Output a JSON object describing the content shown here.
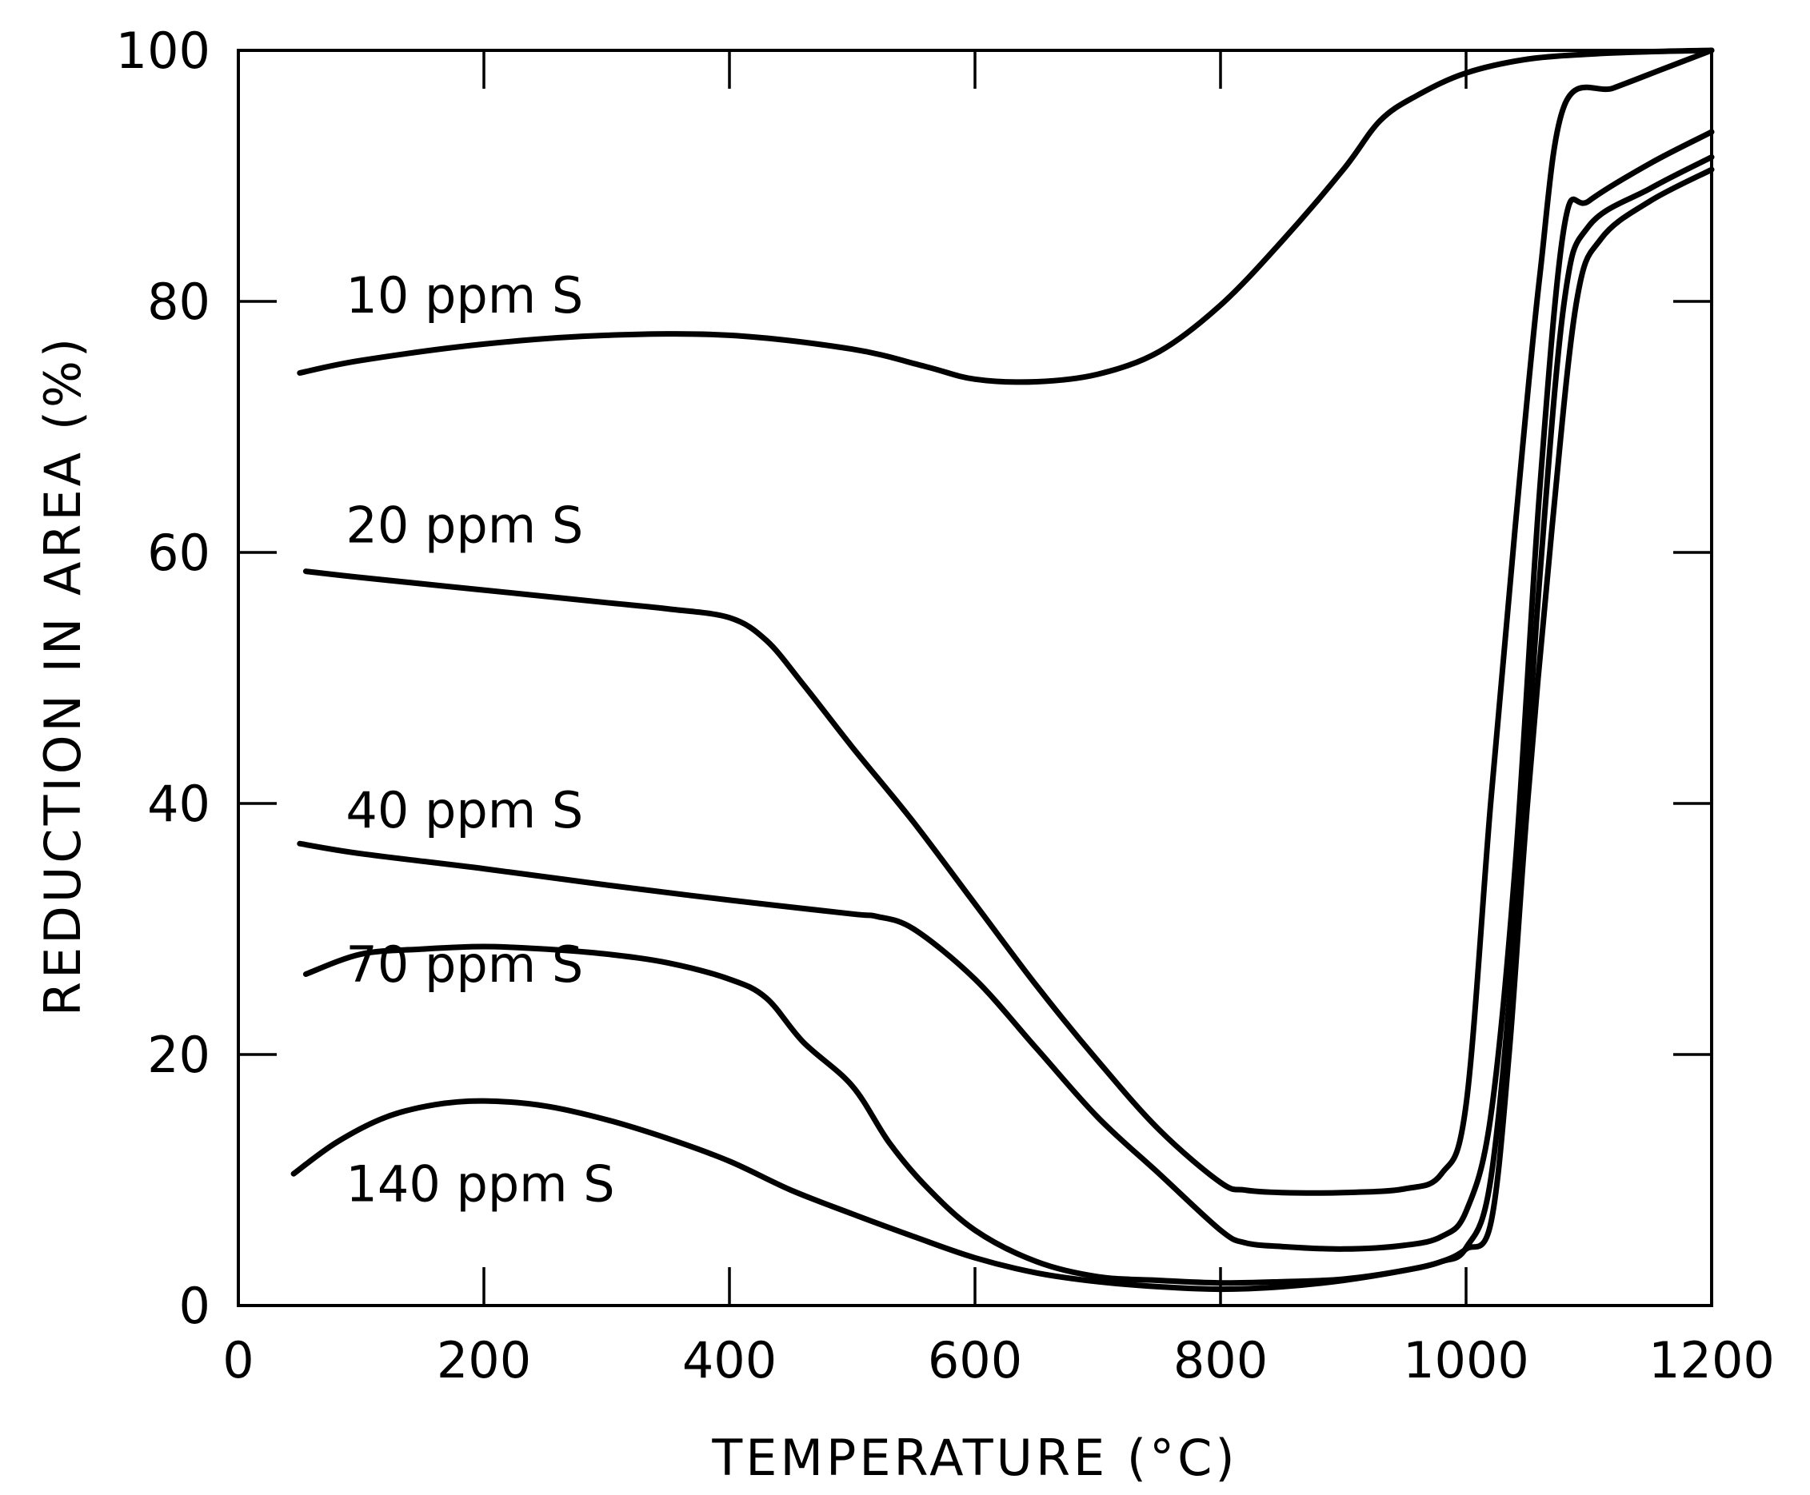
{
  "chart_data": {
    "type": "line",
    "title": "",
    "xlabel": "TEMPERATURE (°C)",
    "ylabel": "REDUCTION IN AREA (%)",
    "xlim": [
      0,
      1200
    ],
    "ylim": [
      0,
      100
    ],
    "xticks": [
      0,
      200,
      400,
      600,
      800,
      1000,
      1200
    ],
    "yticks": [
      0,
      20,
      40,
      60,
      80,
      100
    ],
    "xtick_labels": [
      "0",
      "200",
      "400",
      "600",
      "800",
      "1000",
      "1200"
    ],
    "ytick_labels": [
      "0",
      "20",
      "40",
      "60",
      "80",
      "100"
    ],
    "grid": false,
    "series": [
      {
        "name": "10 ppm S",
        "x": [
          50,
          100,
          200,
          300,
          400,
          500,
          560,
          600,
          650,
          700,
          750,
          800,
          850,
          900,
          930,
          960,
          1000,
          1050,
          1100,
          1150,
          1200
        ],
        "y": [
          74.3,
          75.3,
          76.6,
          77.3,
          77.3,
          76.2,
          74.8,
          73.8,
          73.6,
          74.2,
          76.0,
          79.7,
          84.8,
          90.5,
          94.4,
          96.4,
          98.2,
          99.3,
          99.7,
          99.9,
          100
        ]
      },
      {
        "name": "20 ppm S",
        "x": [
          55,
          100,
          200,
          300,
          350,
          400,
          430,
          460,
          500,
          550,
          600,
          650,
          700,
          750,
          800,
          820,
          850,
          900,
          950,
          980,
          1000,
          1020,
          1040,
          1060,
          1080,
          1120,
          1160,
          1200
        ],
        "y": [
          58.5,
          58.0,
          57.0,
          56.0,
          55.5,
          54.8,
          53.0,
          49.5,
          44.5,
          38.5,
          32.0,
          25.5,
          19.5,
          14.0,
          9.8,
          9.2,
          9.0,
          9.0,
          9.3,
          10.5,
          16.0,
          40.0,
          62.0,
          82.0,
          95.6,
          97.0,
          98.5,
          100
        ]
      },
      {
        "name": "40 ppm S",
        "x": [
          50,
          100,
          200,
          300,
          400,
          500,
          520,
          550,
          600,
          650,
          700,
          750,
          800,
          820,
          850,
          900,
          950,
          980,
          1000,
          1020,
          1040,
          1060,
          1080,
          1100,
          1150,
          1200
        ],
        "y": [
          36.8,
          36.0,
          34.8,
          33.5,
          32.3,
          31.2,
          31.0,
          30.0,
          26.0,
          20.5,
          15.0,
          10.5,
          6.0,
          5.0,
          4.7,
          4.5,
          4.8,
          5.5,
          7.5,
          15.0,
          35.0,
          65.0,
          86.0,
          88.0,
          91.0,
          93.5
        ]
      },
      {
        "name": "70 ppm S",
        "x": [
          55,
          100,
          150,
          200,
          250,
          300,
          350,
          400,
          430,
          460,
          500,
          530,
          560,
          600,
          650,
          700,
          750,
          800,
          850,
          900,
          950,
          980,
          1000,
          1020,
          1040,
          1060,
          1080,
          1100,
          1150,
          1200
        ],
        "y": [
          26.4,
          28.0,
          28.4,
          28.6,
          28.4,
          28.0,
          27.3,
          26.0,
          24.5,
          21.0,
          17.5,
          13.0,
          9.5,
          6.0,
          3.5,
          2.3,
          2.0,
          1.8,
          1.9,
          2.1,
          2.8,
          3.5,
          4.6,
          10.0,
          30.0,
          58.0,
          80.0,
          86.0,
          89.0,
          91.5
        ]
      },
      {
        "name": "140 ppm S",
        "x": [
          45,
          80,
          120,
          160,
          200,
          250,
          300,
          350,
          400,
          450,
          500,
          550,
          600,
          650,
          700,
          750,
          800,
          850,
          900,
          950,
          980,
          1000,
          1020,
          1035,
          1050,
          1070,
          1090,
          1110,
          1150,
          1200
        ],
        "y": [
          10.5,
          13.0,
          15.0,
          16.0,
          16.3,
          15.9,
          14.8,
          13.3,
          11.5,
          9.2,
          7.3,
          5.5,
          3.8,
          2.6,
          1.9,
          1.5,
          1.3,
          1.5,
          2.0,
          2.8,
          3.5,
          4.5,
          6.5,
          20.0,
          40.0,
          62.0,
          80.0,
          85.0,
          88.0,
          90.5
        ]
      }
    ],
    "annotations": [
      {
        "text": "10 ppm S",
        "series": 0,
        "x": 55,
        "y": 80.5
      },
      {
        "text": "20 ppm S",
        "series": 1,
        "x": 55,
        "y": 62.2
      },
      {
        "text": "40 ppm S",
        "series": 2,
        "x": 55,
        "y": 39.5
      },
      {
        "text": "70 ppm S",
        "series": 3,
        "x": 55,
        "y": 27.2
      },
      {
        "text": "140 ppm S",
        "series": 4,
        "x": 55,
        "y": 9.7
      }
    ]
  }
}
